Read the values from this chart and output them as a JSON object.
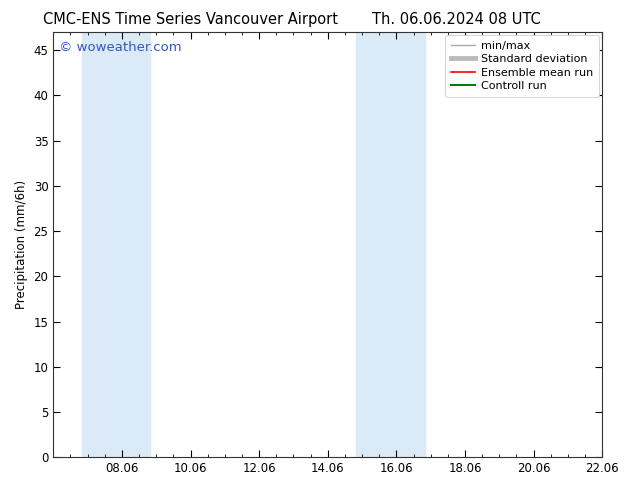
{
  "title_left": "CMC-ENS Time Series Vancouver Airport",
  "title_right": "Th. 06.06.2024 08 UTC",
  "ylabel": "Precipitation (mm/6h)",
  "watermark": "© woweather.com",
  "x_tick_labels": [
    "08.06",
    "10.06",
    "12.06",
    "14.06",
    "16.06",
    "18.06",
    "20.06",
    "22.06"
  ],
  "x_min": 0.0,
  "x_max": 16.0,
  "y_min": 0,
  "y_max": 47,
  "y_ticks": [
    0,
    5,
    10,
    15,
    20,
    25,
    30,
    35,
    40,
    45
  ],
  "shaded_bands": [
    {
      "x_start": 0.83,
      "x_end": 2.83
    },
    {
      "x_start": 8.83,
      "x_end": 10.83
    }
  ],
  "shade_color": "#daeaf7",
  "background_color": "#ffffff",
  "legend_entries": [
    {
      "label": "min/max",
      "color": "#aaaaaa",
      "lw": 1.0
    },
    {
      "label": "Standard deviation",
      "color": "#bbbbbb",
      "lw": 3.5
    },
    {
      "label": "Ensemble mean run",
      "color": "#ff0000",
      "lw": 1.2
    },
    {
      "label": "Controll run",
      "color": "#008000",
      "lw": 1.5
    }
  ],
  "watermark_color": "#3355cc",
  "title_fontsize": 10.5,
  "axis_label_fontsize": 8.5,
  "tick_fontsize": 8.5,
  "legend_fontsize": 8.0,
  "watermark_fontsize": 9.5
}
